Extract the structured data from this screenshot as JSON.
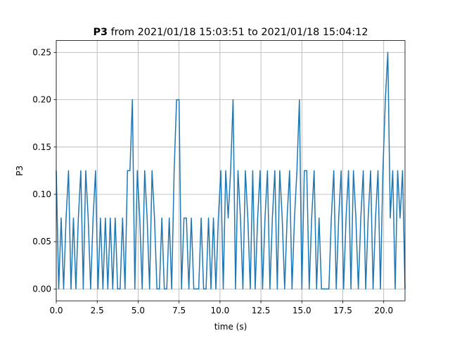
{
  "chart_data": {
    "type": "line",
    "title": {
      "bold": "P3",
      "rest": "from 2021/01/18 15:03:51 to 2021/01/18 15:04:12"
    },
    "x_label": "time (s)",
    "y_label": "P3",
    "x": [
      0,
      0.15,
      0.3,
      0.45,
      0.6,
      0.75,
      0.9,
      1.05,
      1.2,
      1.35,
      1.5,
      1.65,
      1.8,
      1.95,
      2.1,
      2.25,
      2.4,
      2.55,
      2.7,
      2.85,
      3,
      3.15,
      3.3,
      3.45,
      3.6,
      3.75,
      3.9,
      4.05,
      4.2,
      4.35,
      4.5,
      4.65,
      4.8,
      4.95,
      5.1,
      5.25,
      5.4,
      5.55,
      5.7,
      5.85,
      6,
      6.15,
      6.3,
      6.45,
      6.6,
      6.75,
      6.9,
      7.05,
      7.2,
      7.35,
      7.5,
      7.65,
      7.8,
      7.95,
      8.1,
      8.25,
      8.4,
      8.55,
      8.7,
      8.85,
      9,
      9.15,
      9.3,
      9.45,
      9.6,
      9.75,
      9.9,
      10.05,
      10.2,
      10.35,
      10.5,
      10.65,
      10.8,
      10.95,
      11.1,
      11.25,
      11.4,
      11.55,
      11.7,
      11.85,
      12,
      12.15,
      12.3,
      12.45,
      12.6,
      12.75,
      12.9,
      13.05,
      13.2,
      13.35,
      13.5,
      13.65,
      13.8,
      13.95,
      14.1,
      14.25,
      14.4,
      14.55,
      14.7,
      14.85,
      15,
      15.15,
      15.3,
      15.45,
      15.6,
      15.75,
      15.9,
      16.05,
      16.2,
      16.35,
      16.5,
      16.65,
      16.8,
      16.95,
      17.1,
      17.25,
      17.4,
      17.55,
      17.7,
      17.85,
      18,
      18.15,
      18.3,
      18.45,
      18.6,
      18.75,
      18.9,
      19.05,
      19.2,
      19.35,
      19.5,
      19.65,
      19.8,
      19.95,
      20.1,
      20.25,
      20.4,
      20.55,
      20.7,
      20.85,
      21,
      21.15,
      21.3
    ],
    "series": [
      {
        "name": "P3",
        "color": "#1f77b4",
        "values": [
          0.125,
          0,
          0.075,
          0,
          0.075,
          0.125,
          0,
          0.075,
          0,
          0.075,
          0.125,
          0,
          0.125,
          0.075,
          0,
          0.075,
          0.125,
          0,
          0.075,
          0,
          0.075,
          0,
          0.075,
          0,
          0.075,
          0,
          0,
          0.075,
          0,
          0.125,
          0.125,
          0.2,
          0,
          0.125,
          0.075,
          0,
          0.125,
          0.075,
          0,
          0.125,
          0.075,
          0,
          0,
          0.075,
          0,
          0,
          0.075,
          0,
          0.125,
          0.2,
          0.2,
          0,
          0.075,
          0.075,
          0,
          0.075,
          0,
          0,
          0,
          0.075,
          0,
          0,
          0.075,
          0,
          0.075,
          0,
          0.075,
          0.125,
          0,
          0.125,
          0.075,
          0.125,
          0.2,
          0,
          0.125,
          0.075,
          0,
          0.125,
          0.075,
          0,
          0.125,
          0,
          0.075,
          0.125,
          0,
          0.075,
          0.125,
          0,
          0.075,
          0.125,
          0,
          0.125,
          0.075,
          0,
          0.075,
          0.125,
          0,
          0.075,
          0.125,
          0.2,
          0,
          0.125,
          0.125,
          0,
          0.075,
          0.125,
          0,
          0.075,
          0,
          0,
          0,
          0,
          0.075,
          0.125,
          0,
          0.075,
          0.125,
          0,
          0.075,
          0.125,
          0,
          0.125,
          0.075,
          0,
          0.075,
          0.125,
          0,
          0.075,
          0.125,
          0,
          0.075,
          0.125,
          0,
          0.125,
          0.2,
          0.25,
          0.075,
          0.125,
          0,
          0.125,
          0.075,
          0.125,
          0
        ]
      }
    ],
    "xlim": [
      0,
      21.3
    ],
    "ylim": [
      -0.0125,
      0.2625
    ],
    "xticks": [
      {
        "value": 0,
        "label": "0.0"
      },
      {
        "value": 2.5,
        "label": "2.5"
      },
      {
        "value": 5,
        "label": "5.0"
      },
      {
        "value": 7.5,
        "label": "7.5"
      },
      {
        "value": 10,
        "label": "10.0"
      },
      {
        "value": 12.5,
        "label": "12.5"
      },
      {
        "value": 15,
        "label": "15.0"
      },
      {
        "value": 17.5,
        "label": "17.5"
      },
      {
        "value": 20,
        "label": "20.0"
      }
    ],
    "yticks": [
      {
        "value": 0,
        "label": "0.00"
      },
      {
        "value": 0.05,
        "label": "0.05"
      },
      {
        "value": 0.1,
        "label": "0.10"
      },
      {
        "value": 0.15,
        "label": "0.15"
      },
      {
        "value": 0.2,
        "label": "0.20"
      },
      {
        "value": 0.25,
        "label": "0.25"
      }
    ],
    "grid": true
  }
}
